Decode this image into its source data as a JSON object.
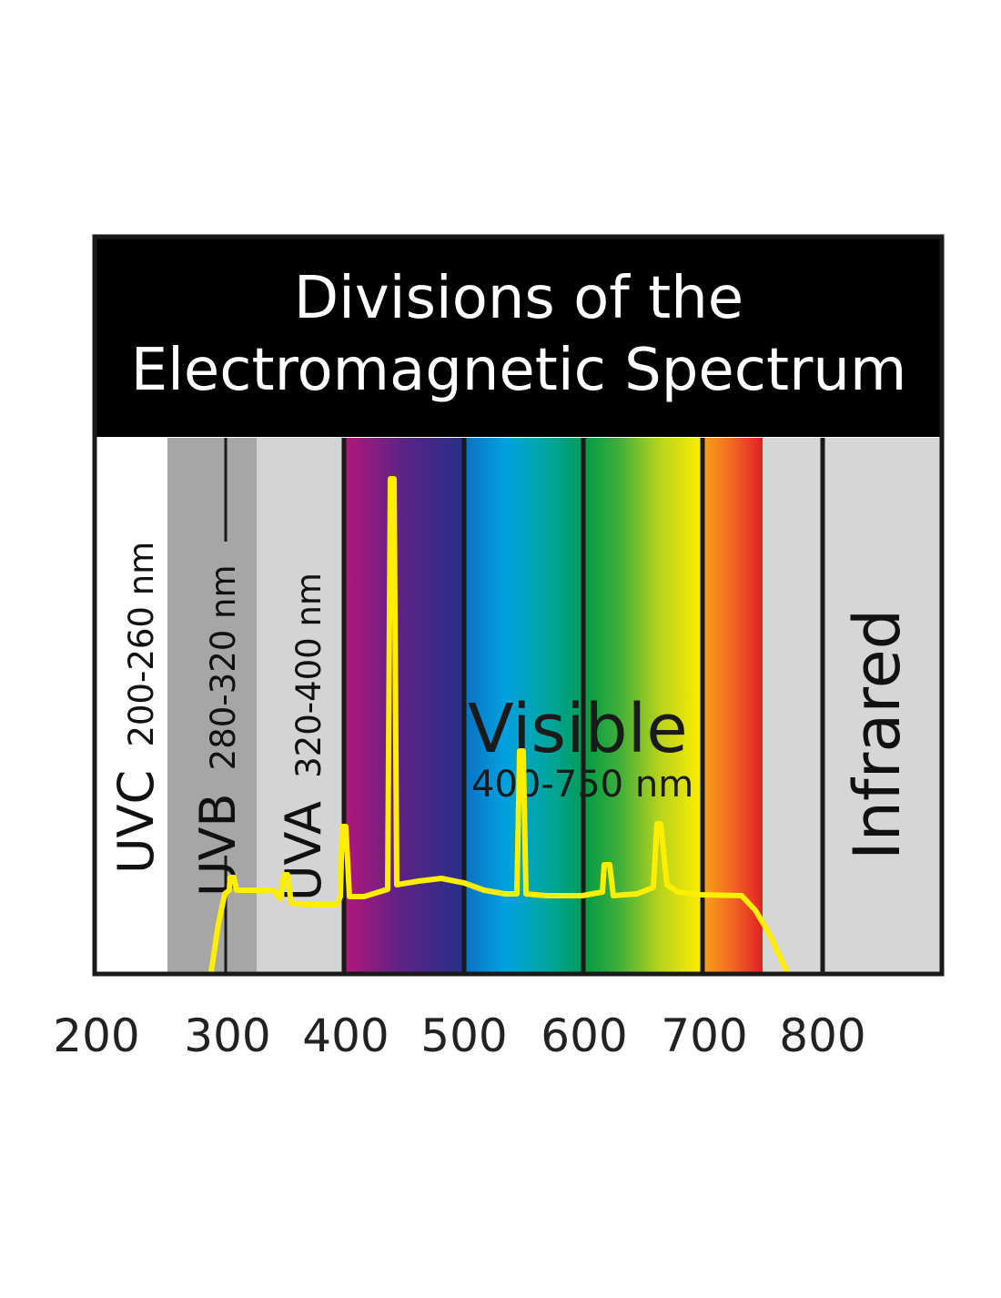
{
  "title": {
    "line1": "Divisions of the",
    "line2": "Electromagnetic Spectrum"
  },
  "bands": {
    "uvc": {
      "name": "UVC",
      "range": "200-260 nm"
    },
    "uvb": {
      "name": "UVB",
      "range": "280-320 nm"
    },
    "uva": {
      "name": "UVA",
      "range": "320-400 nm"
    },
    "visible": {
      "name": "Visible",
      "range": "400-750 nm"
    },
    "infrared": {
      "name": "Infrared"
    }
  },
  "axis": {
    "ticks": [
      "200",
      "300",
      "400",
      "500",
      "600",
      "700",
      "800"
    ]
  },
  "colors": {
    "title_background": "#000000",
    "title_text": "#ffffff",
    "uvc_background": "#ffffff",
    "uvb_background": "#a6a6a6",
    "uva_background": "#d4d4d4",
    "infrared_background": "#d6d6d6",
    "emission_curve": "#ffee00",
    "frame": "#1a1a1a"
  }
}
